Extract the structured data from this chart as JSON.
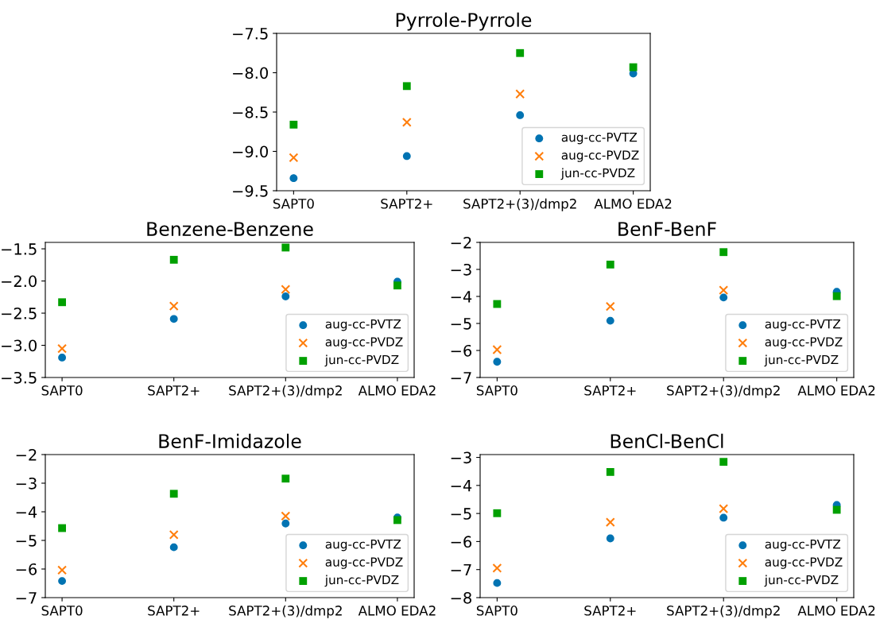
{
  "chart_data": [
    {
      "type": "scatter",
      "title": "Pyrrole-Pyrrole",
      "categories": [
        "SAPT0",
        "SAPT2+",
        "SAPT2+(3)/dmp2",
        "ALMO EDA2"
      ],
      "ylim": [
        -9.5,
        -7.5
      ],
      "yticks": [
        {
          "value": -9.5,
          "label": "−9.5"
        },
        {
          "value": -9.0,
          "label": "−9.0"
        },
        {
          "value": -8.5,
          "label": "−8.5"
        },
        {
          "value": -8.0,
          "label": "−8.0"
        },
        {
          "value": -7.5,
          "label": "−7.5"
        }
      ],
      "legend": "bottom right",
      "grid": false,
      "series": [
        {
          "name": "aug-cc-PVTZ",
          "color": "#0173b2",
          "marker": "circle",
          "values": [
            -9.34,
            -9.06,
            -8.54,
            -8.01
          ]
        },
        {
          "name": "aug-cc-PVDZ",
          "color": "#ff7f0e",
          "marker": "cross",
          "values": [
            -9.08,
            -8.63,
            -8.27,
            null
          ]
        },
        {
          "name": "jun-cc-PVDZ",
          "color": "#00a000",
          "marker": "square",
          "values": [
            -8.66,
            -8.17,
            -7.75,
            -7.93
          ]
        }
      ]
    },
    {
      "type": "scatter",
      "title": "Benzene-Benzene",
      "categories": [
        "SAPT0",
        "SAPT2+",
        "SAPT2+(3)/dmp2",
        "ALMO EDA2"
      ],
      "ylim": [
        -3.5,
        -1.4
      ],
      "yticks": [
        {
          "value": -3.5,
          "label": "−3.5"
        },
        {
          "value": -3.0,
          "label": "−3.0"
        },
        {
          "value": -2.5,
          "label": "−2.5"
        },
        {
          "value": -2.0,
          "label": "−2.0"
        },
        {
          "value": -1.5,
          "label": "−1.5"
        }
      ],
      "legend": "bottom right",
      "grid": false,
      "series": [
        {
          "name": "aug-cc-PVTZ",
          "color": "#0173b2",
          "marker": "circle",
          "values": [
            -3.19,
            -2.59,
            -2.24,
            -2.01
          ]
        },
        {
          "name": "aug-cc-PVDZ",
          "color": "#ff7f0e",
          "marker": "cross",
          "values": [
            -3.05,
            -2.39,
            -2.13,
            null
          ]
        },
        {
          "name": "jun-cc-PVDZ",
          "color": "#00a000",
          "marker": "square",
          "values": [
            -2.33,
            -1.67,
            -1.48,
            -2.07
          ]
        }
      ]
    },
    {
      "type": "scatter",
      "title": "BenF-BenF",
      "categories": [
        "SAPT0",
        "SAPT2+",
        "SAPT2+(3)/dmp2",
        "ALMO EDA2"
      ],
      "ylim": [
        -7,
        -2
      ],
      "yticks": [
        {
          "value": -7,
          "label": "−7"
        },
        {
          "value": -6,
          "label": "−6"
        },
        {
          "value": -5,
          "label": "−5"
        },
        {
          "value": -4,
          "label": "−4"
        },
        {
          "value": -3,
          "label": "−3"
        },
        {
          "value": -2,
          "label": "−2"
        }
      ],
      "legend": "bottom right",
      "grid": false,
      "series": [
        {
          "name": "aug-cc-PVTZ",
          "color": "#0173b2",
          "marker": "circle",
          "values": [
            -6.42,
            -4.9,
            -4.04,
            -3.83
          ]
        },
        {
          "name": "aug-cc-PVDZ",
          "color": "#ff7f0e",
          "marker": "cross",
          "values": [
            -5.97,
            -4.37,
            -3.77,
            null
          ]
        },
        {
          "name": "jun-cc-PVDZ",
          "color": "#00a000",
          "marker": "square",
          "values": [
            -4.28,
            -2.82,
            -2.36,
            -3.99
          ]
        }
      ]
    },
    {
      "type": "scatter",
      "title": "BenF-Imidazole",
      "categories": [
        "SAPT0",
        "SAPT2+",
        "SAPT2+(3)/dmp2",
        "ALMO EDA2"
      ],
      "ylim": [
        -7,
        -2
      ],
      "yticks": [
        {
          "value": -7,
          "label": "−7"
        },
        {
          "value": -6,
          "label": "−6"
        },
        {
          "value": -5,
          "label": "−5"
        },
        {
          "value": -4,
          "label": "−4"
        },
        {
          "value": -3,
          "label": "−3"
        },
        {
          "value": -2,
          "label": "−2"
        }
      ],
      "legend": "bottom right",
      "grid": false,
      "series": [
        {
          "name": "aug-cc-PVTZ",
          "color": "#0173b2",
          "marker": "circle",
          "values": [
            -6.42,
            -5.24,
            -4.41,
            -4.2
          ]
        },
        {
          "name": "aug-cc-PVDZ",
          "color": "#ff7f0e",
          "marker": "cross",
          "values": [
            -6.04,
            -4.8,
            -4.15,
            null
          ]
        },
        {
          "name": "jun-cc-PVDZ",
          "color": "#00a000",
          "marker": "square",
          "values": [
            -4.57,
            -3.37,
            -2.84,
            -4.29
          ]
        }
      ]
    },
    {
      "type": "scatter",
      "title": "BenCl-BenCl",
      "categories": [
        "SAPT0",
        "SAPT2+",
        "SAPT2+(3)/dmp2",
        "ALMO EDA2"
      ],
      "ylim": [
        -8,
        -2.9
      ],
      "yticks": [
        {
          "value": -8,
          "label": "−8"
        },
        {
          "value": -7,
          "label": "−7"
        },
        {
          "value": -6,
          "label": "−6"
        },
        {
          "value": -5,
          "label": "−5"
        },
        {
          "value": -4,
          "label": "−4"
        },
        {
          "value": -3,
          "label": "−3"
        }
      ],
      "legend": "bottom right",
      "grid": false,
      "series": [
        {
          "name": "aug-cc-PVTZ",
          "color": "#0173b2",
          "marker": "circle",
          "values": [
            -7.48,
            -5.89,
            -5.15,
            -4.7
          ]
        },
        {
          "name": "aug-cc-PVDZ",
          "color": "#ff7f0e",
          "marker": "cross",
          "values": [
            -6.95,
            -5.31,
            -4.83,
            null
          ]
        },
        {
          "name": "jun-cc-PVDZ",
          "color": "#00a000",
          "marker": "square",
          "values": [
            -4.99,
            -3.52,
            -3.16,
            -4.87
          ]
        }
      ]
    }
  ]
}
